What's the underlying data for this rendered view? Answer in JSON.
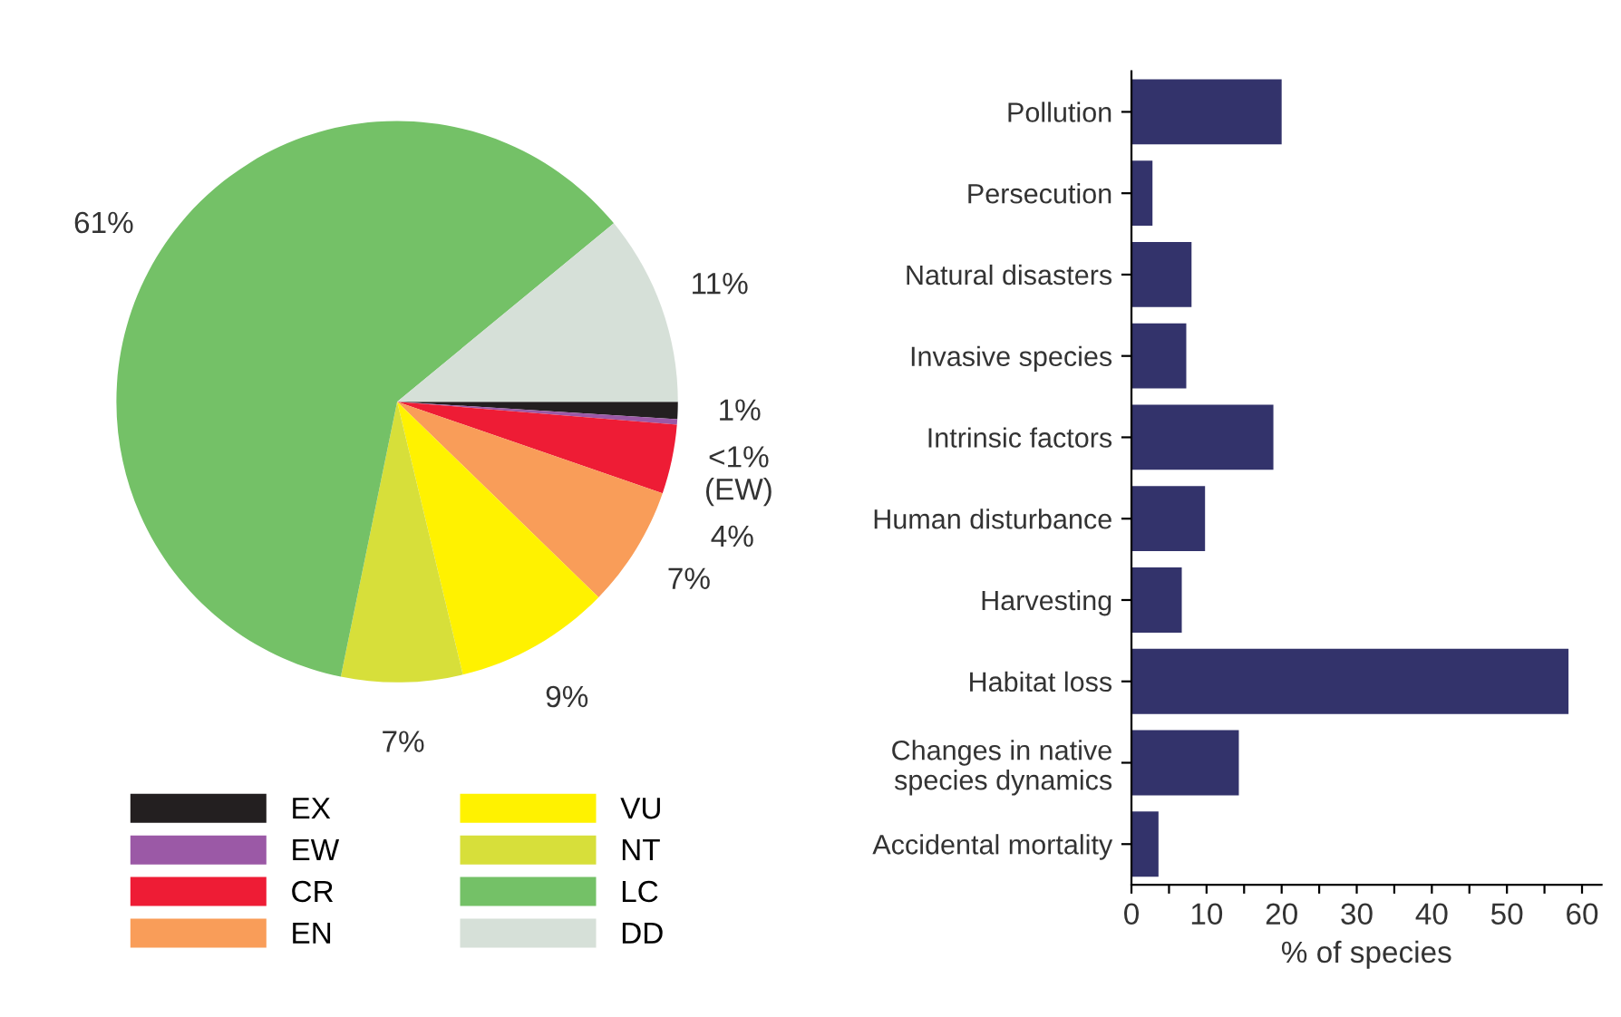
{
  "chart_data": [
    {
      "type": "pie",
      "categories": [
        "EX",
        "EW",
        "CR",
        "EN",
        "VU",
        "NT",
        "LC",
        "DD"
      ],
      "values": [
        1,
        0.3,
        4,
        7,
        9,
        7,
        61,
        11
      ],
      "colors": [
        "#231f20",
        "#9b59a6",
        "#ee1c35",
        "#f99d59",
        "#fff200",
        "#d7df3a",
        "#74c167",
        "#d6e0d8"
      ],
      "value_labels": [
        "1%",
        "<1%\n(EW)",
        "4%",
        "7%",
        "9%",
        "7%",
        "61%",
        "11%"
      ],
      "legend": "bottom"
    },
    {
      "type": "bar",
      "orientation": "horizontal",
      "categories": [
        "Pollution",
        "Persecution",
        "Natural disasters",
        "Invasive species",
        "Intrinsic factors",
        "Human disturbance",
        "Harvesting",
        "Habitat loss",
        "Changes in native\nspecies dynamics",
        "Accidental mortality"
      ],
      "values": [
        20.0,
        2.8,
        8.0,
        7.3,
        18.9,
        9.8,
        6.7,
        58.2,
        14.3,
        3.6
      ],
      "color": "#33336b",
      "xlabel": "% of species",
      "xlim": [
        0,
        62.6
      ],
      "xticks": [
        0,
        {
          "value": 5,
          "label": null
        },
        10,
        {
          "value": 15,
          "label": null
        },
        20,
        {
          "value": 25,
          "label": null
        },
        30,
        {
          "value": 35,
          "label": null
        },
        40,
        {
          "value": 45,
          "label": null
        },
        50,
        {
          "value": 55,
          "label": null
        },
        60
      ],
      "grid": false
    }
  ]
}
